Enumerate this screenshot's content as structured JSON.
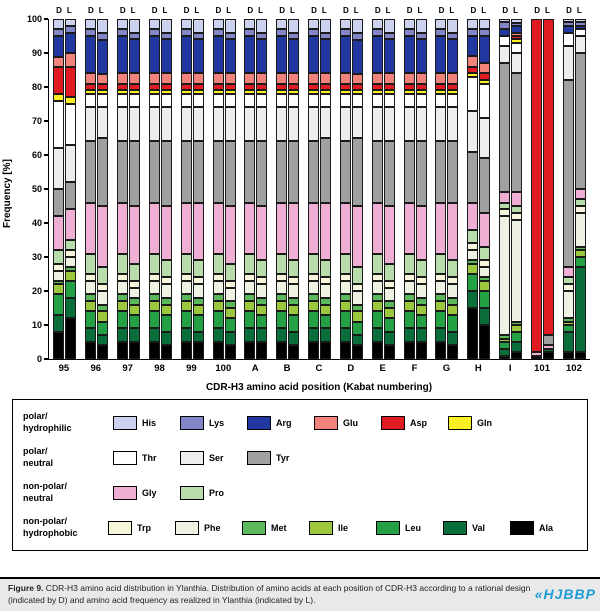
{
  "chart_data": {
    "type": "bar",
    "stacked": true,
    "ylabel": "Frequency [%]",
    "xlabel": "CDR-H3 amino acid position (Kabat numbering)",
    "ylim": [
      0,
      100
    ],
    "yticks": [
      0,
      10,
      20,
      30,
      40,
      50,
      60,
      70,
      80,
      90,
      100
    ],
    "bar_pair_labels": [
      "D",
      "L"
    ],
    "positions": [
      "95",
      "96",
      "97",
      "98",
      "99",
      "100",
      "A",
      "B",
      "C",
      "D",
      "E",
      "F",
      "G",
      "H",
      "I",
      "101",
      "102"
    ],
    "stack_order": [
      "Ala",
      "Val",
      "Leu",
      "Ile",
      "Met",
      "Phe",
      "Trp",
      "Pro",
      "Gly",
      "Tyr",
      "Ser",
      "Thr",
      "Gln",
      "Asp",
      "Glu",
      "Arg",
      "Lys",
      "His"
    ],
    "colors": {
      "His": "#ccd1ed",
      "Lys": "#8285c6",
      "Arg": "#2038a0",
      "Glu": "#f2837b",
      "Asp": "#e01b22",
      "Gln": "#fbee23",
      "Thr": "#ffffff",
      "Ser": "#ededed",
      "Tyr": "#a0a0a0",
      "Gly": "#efaed3",
      "Pro": "#b9dcab",
      "Trp": "#f7f6dd",
      "Phe": "#eef2e2",
      "Met": "#5cb85a",
      "Ile": "#9bc83c",
      "Leu": "#23a144",
      "Val": "#0a6e3a",
      "Ala": "#000000"
    },
    "bars": {
      "95": {
        "D": [
          8,
          5,
          6,
          3,
          1,
          3,
          2,
          4,
          10,
          8,
          12,
          14,
          2,
          8,
          3,
          6,
          2,
          3
        ],
        "L": [
          12,
          6,
          5,
          3,
          1,
          3,
          2,
          3,
          9,
          8,
          11,
          12,
          2,
          9,
          4,
          6,
          2,
          2
        ]
      },
      "96": {
        "D": [
          5,
          4,
          5,
          3,
          2,
          4,
          2,
          6,
          15,
          18,
          10,
          4,
          1,
          2,
          3,
          11,
          2,
          3
        ],
        "L": [
          4,
          3,
          4,
          3,
          2,
          4,
          2,
          5,
          18,
          20,
          9,
          4,
          1,
          2,
          3,
          10,
          2,
          4
        ]
      },
      "97": {
        "D": [
          5,
          4,
          5,
          3,
          2,
          4,
          2,
          6,
          15,
          18,
          10,
          4,
          1,
          2,
          3,
          11,
          2,
          3
        ],
        "L": [
          5,
          4,
          4,
          3,
          2,
          3,
          2,
          5,
          17,
          19,
          10,
          4,
          1,
          2,
          3,
          10,
          2,
          4
        ]
      },
      "98": {
        "D": [
          5,
          4,
          5,
          3,
          2,
          4,
          2,
          6,
          15,
          18,
          10,
          4,
          1,
          2,
          3,
          11,
          2,
          3
        ],
        "L": [
          4,
          4,
          5,
          3,
          2,
          4,
          2,
          5,
          16,
          19,
          10,
          4,
          1,
          2,
          3,
          10,
          2,
          4
        ]
      },
      "99": {
        "D": [
          5,
          4,
          5,
          3,
          2,
          4,
          2,
          6,
          15,
          18,
          10,
          4,
          1,
          2,
          3,
          11,
          2,
          3
        ],
        "L": [
          5,
          3,
          5,
          3,
          2,
          4,
          2,
          5,
          17,
          18,
          10,
          4,
          1,
          2,
          3,
          10,
          2,
          4
        ]
      },
      "100": {
        "D": [
          5,
          4,
          5,
          3,
          2,
          4,
          2,
          6,
          15,
          18,
          10,
          4,
          1,
          2,
          3,
          11,
          2,
          3
        ],
        "L": [
          4,
          4,
          4,
          3,
          2,
          4,
          2,
          5,
          17,
          19,
          10,
          4,
          1,
          2,
          3,
          10,
          2,
          4
        ]
      },
      "A": {
        "D": [
          5,
          4,
          5,
          3,
          2,
          4,
          2,
          6,
          15,
          18,
          10,
          4,
          1,
          2,
          3,
          11,
          2,
          3
        ],
        "L": [
          5,
          4,
          4,
          3,
          2,
          4,
          2,
          5,
          16,
          19,
          10,
          4,
          1,
          2,
          3,
          10,
          2,
          4
        ]
      },
      "B": {
        "D": [
          5,
          4,
          5,
          3,
          2,
          4,
          2,
          6,
          15,
          18,
          10,
          4,
          1,
          2,
          3,
          11,
          2,
          3
        ],
        "L": [
          4,
          4,
          5,
          3,
          2,
          4,
          2,
          5,
          17,
          18,
          10,
          4,
          1,
          2,
          3,
          10,
          2,
          4
        ]
      },
      "C": {
        "D": [
          5,
          4,
          5,
          3,
          2,
          4,
          2,
          6,
          15,
          18,
          10,
          4,
          1,
          2,
          3,
          11,
          2,
          3
        ],
        "L": [
          5,
          4,
          4,
          3,
          2,
          4,
          2,
          5,
          17,
          19,
          9,
          4,
          1,
          2,
          3,
          10,
          2,
          4
        ]
      },
      "D": {
        "D": [
          5,
          4,
          5,
          3,
          2,
          4,
          2,
          6,
          15,
          18,
          10,
          4,
          1,
          2,
          3,
          11,
          2,
          3
        ],
        "L": [
          4,
          3,
          4,
          3,
          2,
          4,
          2,
          5,
          18,
          20,
          9,
          4,
          1,
          2,
          3,
          10,
          2,
          4
        ]
      },
      "E": {
        "D": [
          5,
          4,
          5,
          3,
          2,
          4,
          2,
          6,
          15,
          18,
          10,
          4,
          1,
          2,
          3,
          11,
          2,
          3
        ],
        "L": [
          4,
          4,
          4,
          3,
          2,
          4,
          2,
          5,
          17,
          19,
          10,
          4,
          1,
          2,
          3,
          10,
          2,
          4
        ]
      },
      "F": {
        "D": [
          5,
          4,
          5,
          3,
          2,
          4,
          2,
          6,
          15,
          18,
          10,
          4,
          1,
          2,
          3,
          11,
          2,
          3
        ],
        "L": [
          5,
          4,
          4,
          3,
          2,
          4,
          2,
          5,
          16,
          19,
          10,
          4,
          1,
          2,
          3,
          10,
          2,
          4
        ]
      },
      "G": {
        "D": [
          5,
          4,
          5,
          3,
          2,
          4,
          2,
          6,
          15,
          18,
          10,
          4,
          1,
          2,
          3,
          11,
          2,
          3
        ],
        "L": [
          4,
          4,
          5,
          3,
          2,
          4,
          2,
          5,
          17,
          18,
          10,
          4,
          1,
          2,
          3,
          10,
          2,
          4
        ]
      },
      "H": {
        "D": [
          15,
          5,
          5,
          3,
          1,
          3,
          2,
          4,
          8,
          15,
          12,
          10,
          1,
          2,
          3,
          6,
          2,
          3
        ],
        "L": [
          10,
          5,
          5,
          3,
          1,
          3,
          2,
          4,
          10,
          16,
          12,
          10,
          1,
          2,
          3,
          8,
          2,
          3
        ]
      },
      "I": {
        "D": [
          1,
          2,
          2,
          1,
          1,
          35,
          2,
          2,
          3,
          38,
          5,
          3,
          0,
          0,
          0,
          2,
          2,
          1
        ],
        "L": [
          2,
          3,
          3,
          2,
          1,
          30,
          2,
          2,
          4,
          35,
          6,
          3,
          1,
          1,
          1,
          2,
          1,
          1
        ]
      },
      "101": {
        "D": [
          1,
          0,
          0,
          0,
          0,
          0,
          0,
          0,
          1,
          0,
          0,
          0,
          0,
          98,
          0,
          0,
          0,
          0
        ],
        "L": [
          2,
          1,
          0,
          0,
          0,
          0,
          0,
          0,
          1,
          3,
          0,
          0,
          0,
          93,
          0,
          0,
          0,
          0
        ]
      },
      "102": {
        "D": [
          2,
          6,
          2,
          1,
          1,
          8,
          2,
          2,
          3,
          55,
          10,
          4,
          0,
          0,
          0,
          2,
          1,
          1
        ],
        "L": [
          2,
          25,
          3,
          2,
          1,
          10,
          2,
          2,
          3,
          40,
          5,
          2,
          0,
          0,
          0,
          1,
          1,
          1
        ]
      }
    }
  },
  "legend": {
    "groups": [
      {
        "label": [
          "polar/",
          "hydrophilic"
        ],
        "items": [
          "His",
          "Lys",
          "Arg",
          "Glu",
          "Asp",
          "Gln"
        ]
      },
      {
        "label": [
          "polar/",
          "neutral"
        ],
        "items": [
          "Thr",
          "Ser",
          "Tyr"
        ]
      },
      {
        "label": [
          "non-polar/",
          "neutral"
        ],
        "items": [
          "Gly",
          "Pro"
        ]
      },
      {
        "label": [
          "non-polar/",
          "hydrophobic"
        ],
        "items": [
          "Trp",
          "Phe",
          "Met",
          "Ile",
          "Leu",
          "Val",
          "Ala"
        ]
      }
    ]
  },
  "caption": {
    "label": "Figure 9.",
    "text": " CDR-H3 amino acid distribution in Ylanthia. Distribution of amino acids at each position of CDR-H3 according to a rational design (indicated by D) and amino acid frequency as realized in Ylanthia (indicated by L).",
    "watermark": "«HJBBP"
  }
}
